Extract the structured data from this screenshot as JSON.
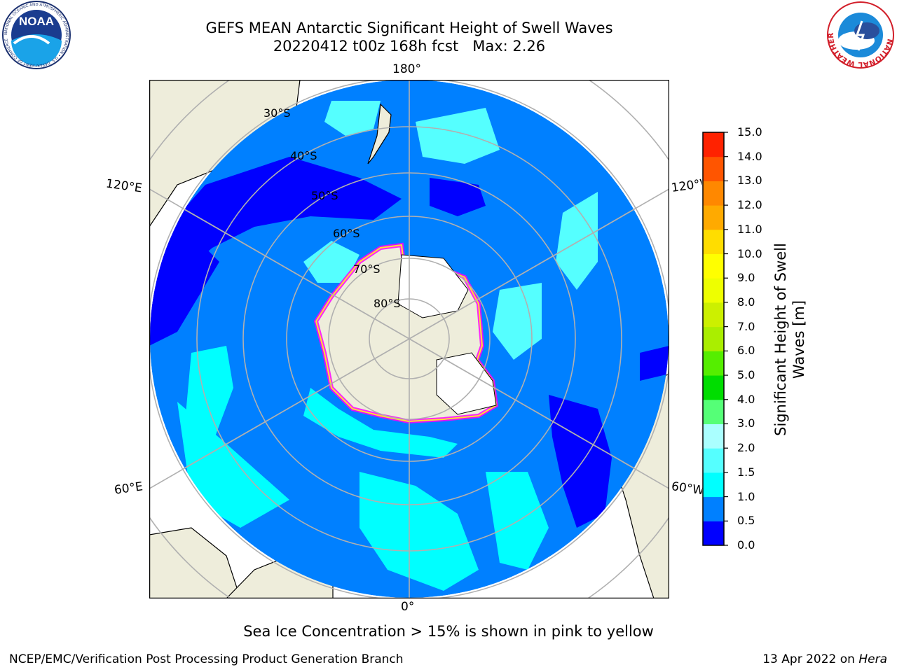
{
  "title": {
    "line1": "GEFS MEAN Antarctic Significant Height of Swell Waves",
    "line2": "20220412 t00z 168h fcst   Max: 2.26"
  },
  "logos": {
    "left": "NOAA",
    "left_ring": "NATIONAL OCEANIC AND ATMOSPHERIC ADMINISTRATION • U.S. DEPARTMENT OF COMMERCE",
    "right_ring": "NATIONAL WEATHER SERVICE"
  },
  "map": {
    "projection": "south-polar-stereographic",
    "longitude_labels": {
      "top": "180°",
      "bottom": "0°",
      "upper_left": "120°E",
      "upper_right": "120°W",
      "lower_left": "60°E",
      "lower_right": "60°W"
    },
    "latitude_labels": [
      "30°S",
      "40°S",
      "50°S",
      "60°S",
      "70°S",
      "80°S"
    ],
    "colors": {
      "land": "#eeeddb",
      "ocean_low": "#0000ff",
      "ocean_mid": "#0080ff",
      "ocean_high": "#00ffff",
      "ocean_higher": "#55ffff",
      "sea_ice": "#ff00ff",
      "grid": "#b0b0b0"
    }
  },
  "colorbar": {
    "label": "Significant Height of Swell Waves [m]",
    "ticks": [
      "15.0",
      "14.0",
      "13.0",
      "12.0",
      "11.0",
      "10.0",
      "9.0",
      "8.0",
      "7.0",
      "6.0",
      "5.0",
      "4.0",
      "3.0",
      "2.0",
      "1.5",
      "1.0",
      "0.5",
      "0.0"
    ],
    "colors": [
      "#0000ff",
      "#0080ff",
      "#00ffff",
      "#55ffff",
      "#aaffff",
      "#55ff77",
      "#00dd00",
      "#55ee00",
      "#aaee00",
      "#ccf000",
      "#eeff00",
      "#ffff00",
      "#ffdd00",
      "#ffaa00",
      "#ff8800",
      "#ff5500",
      "#ff2200"
    ]
  },
  "footer": {
    "note": "Sea Ice Concentration > 15% is shown in pink to yellow",
    "left": "NCEP/EMC/Verification Post Processing Product Generation Branch",
    "right_date": "13 Apr 2022 on ",
    "right_host": "Hera"
  }
}
